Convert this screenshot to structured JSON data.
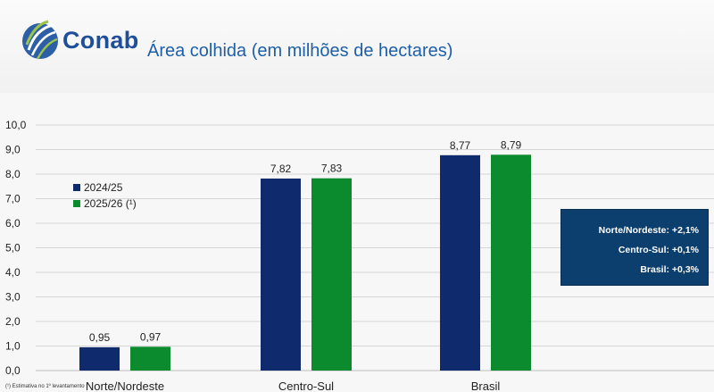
{
  "header": {
    "logo_text": "Conab",
    "title": "Área colhida (em milhões de hectares)"
  },
  "legend": [
    {
      "label": "2024/25",
      "color": "#102a6e"
    },
    {
      "label": "2025/26 (¹)",
      "color": "#0c8a2e"
    }
  ],
  "infobox": {
    "lines": [
      "Norte/Nordeste:  +2,1%",
      "Centro-Sul: +0,1%",
      "Brasil: +0,3%"
    ],
    "background": "#0d3f6e"
  },
  "footnote": "(¹) Estimativa no 1º levantamento",
  "chart_data": {
    "type": "bar",
    "title": "Área colhida (em milhões de hectares)",
    "categories": [
      "Norte/Nordeste",
      "Centro-Sul",
      "Brasil"
    ],
    "series": [
      {
        "name": "2024/25",
        "values": [
          0.95,
          7.82,
          8.77
        ],
        "labels": [
          "0,95",
          "7,82",
          "8,77"
        ],
        "color": "#102a6e"
      },
      {
        "name": "2025/26 (¹)",
        "values": [
          0.97,
          7.83,
          8.79
        ],
        "labels": [
          "0,97",
          "7,83",
          "8,79"
        ],
        "color": "#0c8a2e"
      }
    ],
    "yticks": [
      "0,0",
      "1,0",
      "2,0",
      "3,0",
      "4,0",
      "5,0",
      "6,0",
      "7,0",
      "8,0",
      "9,0",
      "10,0"
    ],
    "ylim": [
      0,
      10
    ],
    "grid": true,
    "legend_position": "left"
  }
}
